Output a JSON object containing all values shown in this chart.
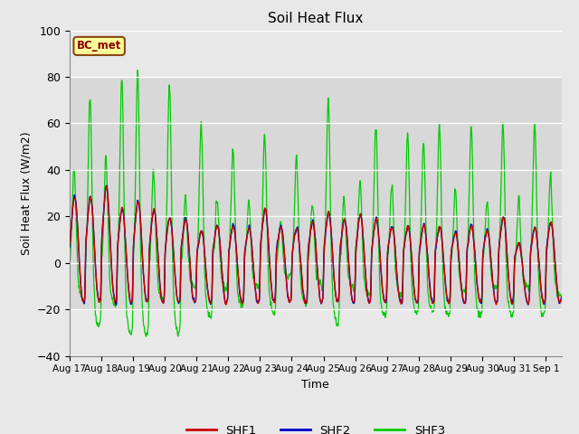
{
  "title": "Soil Heat Flux",
  "xlabel": "Time",
  "ylabel": "Soil Heat Flux (W/m2)",
  "ylim": [
    -40,
    100
  ],
  "yticks": [
    -40,
    -20,
    0,
    20,
    40,
    60,
    80,
    100
  ],
  "x_labels": [
    "Aug 17",
    "Aug 18",
    "Aug 19",
    "Aug 20",
    "Aug 21",
    "Aug 22",
    "Aug 23",
    "Aug 24",
    "Aug 25",
    "Aug 26",
    "Aug 27",
    "Aug 28",
    "Aug 29",
    "Aug 30",
    "Aug 31",
    "Sep 1"
  ],
  "annotation_text": "BC_met",
  "annotation_bg": "#FFFF99",
  "annotation_border": "#8B4513",
  "shf1_color": "#CC0000",
  "shf2_color": "#0000CC",
  "shf3_color": "#00CC00",
  "background_color": "#E8E8E8",
  "plot_bg": "#E8E8E8",
  "grid_color": "#FFFFFF",
  "shade_low": -20,
  "shade_high": 80,
  "shade_color": "#D8D8D8",
  "legend_labels": [
    "SHF1",
    "SHF2",
    "SHF3"
  ],
  "shf3_peaks": [
    45,
    78,
    51,
    87,
    90,
    43,
    85,
    30,
    66,
    30,
    53,
    29,
    60,
    18,
    50,
    28,
    76,
    30,
    39,
    65,
    37,
    60,
    59,
    65,
    35,
    64,
    30,
    65,
    30,
    65
  ],
  "shf12_peaks": [
    31,
    31,
    35,
    26,
    29,
    25,
    22,
    21,
    16,
    18,
    18,
    17,
    26,
    18,
    17,
    20,
    24,
    21,
    23,
    21,
    18,
    18,
    18,
    18,
    15,
    18,
    16,
    22,
    10,
    17
  ]
}
